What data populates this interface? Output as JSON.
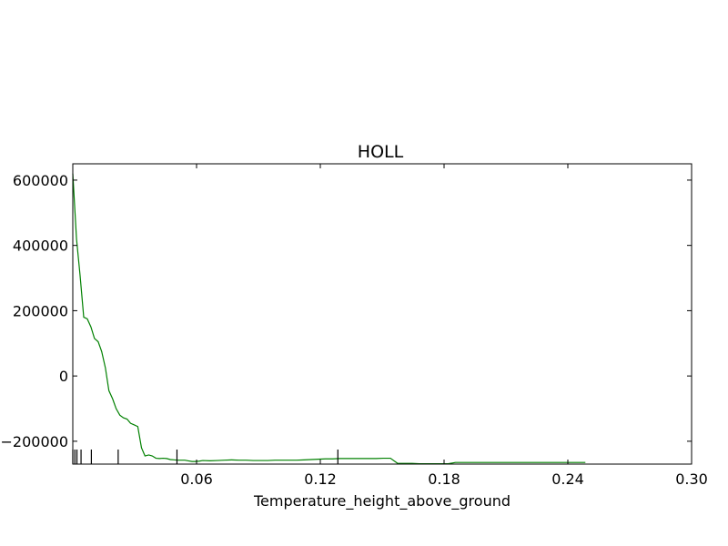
{
  "chart_data": {
    "type": "line",
    "title": "HOLL",
    "xlabel": "Temperature_height_above_ground",
    "ylabel": "",
    "xlim": [
      0.0,
      0.3
    ],
    "ylim": [
      -270000,
      650000
    ],
    "xticks": [
      0.06,
      0.12,
      0.18,
      0.24,
      0.3
    ],
    "xtick_labels": [
      "0.06",
      "0.12",
      "0.18",
      "0.24",
      "0.30"
    ],
    "yticks": [
      600000,
      400000,
      200000,
      0,
      -200000
    ],
    "ytick_labels": [
      "600000",
      "400000",
      "200000",
      "0",
      "−200000"
    ],
    "grid": false,
    "line_color": "#008000",
    "series": [
      {
        "x": [
          0.0,
          0.0018,
          0.0035,
          0.0053,
          0.007,
          0.0088,
          0.0105,
          0.0123,
          0.014,
          0.0158,
          0.0175,
          0.0193,
          0.021,
          0.0228,
          0.0245,
          0.0263,
          0.028,
          0.0298,
          0.0315,
          0.0333,
          0.035,
          0.0368,
          0.0385,
          0.0403,
          0.042,
          0.0438,
          0.0455,
          0.0473,
          0.049,
          0.0508,
          0.0525,
          0.0543,
          0.056,
          0.0578,
          0.0595,
          0.0613,
          0.063,
          0.0665,
          0.07,
          0.0735,
          0.077,
          0.0805,
          0.084,
          0.0875,
          0.091,
          0.0945,
          0.098,
          0.1015,
          0.105,
          0.1085,
          0.112,
          0.1155,
          0.119,
          0.1225,
          0.126,
          0.1295,
          0.133,
          0.1365,
          0.14,
          0.1435,
          0.147,
          0.1505,
          0.154,
          0.1575,
          0.161,
          0.1645,
          0.168,
          0.1715,
          0.175,
          0.1785,
          0.182,
          0.1855,
          0.189,
          0.1925,
          0.196,
          0.1995,
          0.203,
          0.2065,
          0.21,
          0.2135,
          0.217,
          0.2205,
          0.224,
          0.2275,
          0.231,
          0.2345,
          0.238,
          0.2415,
          0.245,
          0.2485
        ],
        "y": [
          620000,
          420000,
          310000,
          180000,
          175000,
          150000,
          115000,
          105000,
          75000,
          25000,
          -45000,
          -70000,
          -100000,
          -120000,
          -128000,
          -132000,
          -145000,
          -150000,
          -155000,
          -220000,
          -245000,
          -242000,
          -245000,
          -252000,
          -253000,
          -252000,
          -253000,
          -256000,
          -257000,
          -258000,
          -258000,
          -258000,
          -260000,
          -262000,
          -262000,
          -261000,
          -259000,
          -260000,
          -259000,
          -258000,
          -257000,
          -258000,
          -258000,
          -259000,
          -259000,
          -259000,
          -258000,
          -258000,
          -258000,
          -258000,
          -257000,
          -256000,
          -255000,
          -254000,
          -254000,
          -253000,
          -253000,
          -253000,
          -253000,
          -253000,
          -253000,
          -252000,
          -252000,
          -268000,
          -268000,
          -268000,
          -269000,
          -269000,
          -269000,
          -269000,
          -269000,
          -265000,
          -265000,
          -265000,
          -265000,
          -265000,
          -265000,
          -265000,
          -265000,
          -265000,
          -265000,
          -265000,
          -265000,
          -265000,
          -265000,
          -265000,
          -265000,
          -265000,
          -265000,
          -265000
        ]
      }
    ],
    "rug_x": [
      0.0,
      0.001,
      0.002,
      0.004,
      0.009,
      0.022,
      0.0505,
      0.1285
    ]
  }
}
